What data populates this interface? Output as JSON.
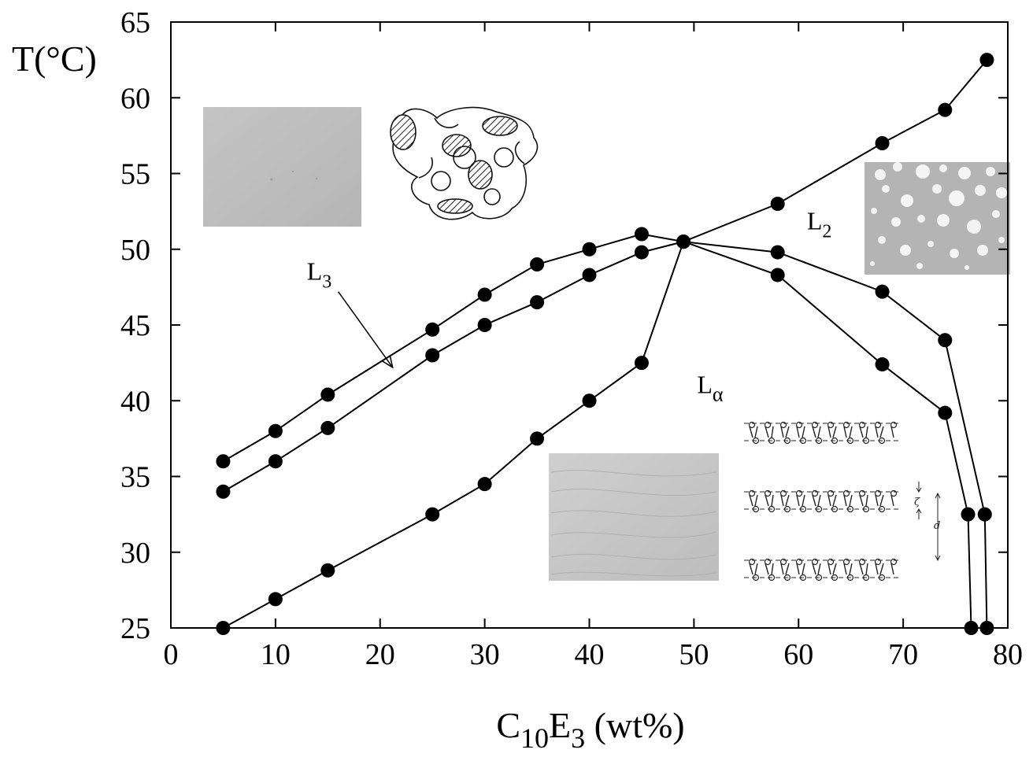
{
  "chart_data": {
    "type": "line",
    "x_axis": {
      "label_main": "C",
      "label_sub1": "10",
      "label_mid": "E",
      "label_sub2": "3",
      "label_tail": " (wt%)",
      "range": [
        0,
        80
      ],
      "ticks": [
        0,
        10,
        20,
        30,
        40,
        50,
        60,
        70,
        80
      ]
    },
    "y_axis": {
      "label": "T(°C)",
      "range": [
        25,
        65
      ],
      "ticks": [
        25,
        30,
        35,
        40,
        45,
        50,
        55,
        60,
        65
      ]
    },
    "grid": false,
    "series": [
      {
        "points": [
          [
            5,
            36
          ],
          [
            10,
            38
          ],
          [
            15,
            40.4
          ],
          [
            25,
            44.7
          ],
          [
            30,
            47
          ],
          [
            35,
            49
          ],
          [
            40,
            50
          ],
          [
            45,
            51
          ],
          [
            49,
            50.5
          ],
          [
            58,
            49.8
          ],
          [
            68,
            47.2
          ],
          [
            74,
            44
          ],
          [
            77.8,
            32.5
          ],
          [
            78,
            25
          ]
        ]
      },
      {
        "points": [
          [
            5,
            34
          ],
          [
            10,
            36
          ],
          [
            15,
            38.2
          ],
          [
            25,
            43
          ],
          [
            30,
            45
          ],
          [
            35,
            46.5
          ],
          [
            40,
            48.3
          ],
          [
            45,
            49.8
          ],
          [
            49,
            50.5
          ],
          [
            58,
            48.3
          ],
          [
            68,
            42.4
          ],
          [
            74,
            39.2
          ],
          [
            76.2,
            32.5
          ],
          [
            76.5,
            25
          ]
        ]
      },
      {
        "points": [
          [
            5,
            25
          ],
          [
            10,
            26.9
          ],
          [
            15,
            28.8
          ],
          [
            25,
            32.5
          ],
          [
            30,
            34.5
          ],
          [
            35,
            37.5
          ],
          [
            40,
            40
          ],
          [
            45,
            42.5
          ],
          [
            49,
            50.5
          ]
        ]
      },
      {
        "points": [
          [
            49,
            50.5
          ],
          [
            58,
            53
          ],
          [
            68,
            57
          ],
          [
            74,
            59.2
          ],
          [
            78,
            62.5
          ]
        ]
      }
    ],
    "annotations": [
      {
        "main": "L",
        "sub": "3",
        "pos": [
          13,
          48
        ]
      },
      {
        "main": "L",
        "sub": "2",
        "pos": [
          60.8,
          51.3
        ]
      },
      {
        "main": "L",
        "sub": "α",
        "pos": [
          50.3,
          40.5
        ]
      }
    ],
    "arrow": {
      "from": [
        16,
        47.2
      ],
      "to": [
        21.2,
        42.2
      ]
    }
  }
}
